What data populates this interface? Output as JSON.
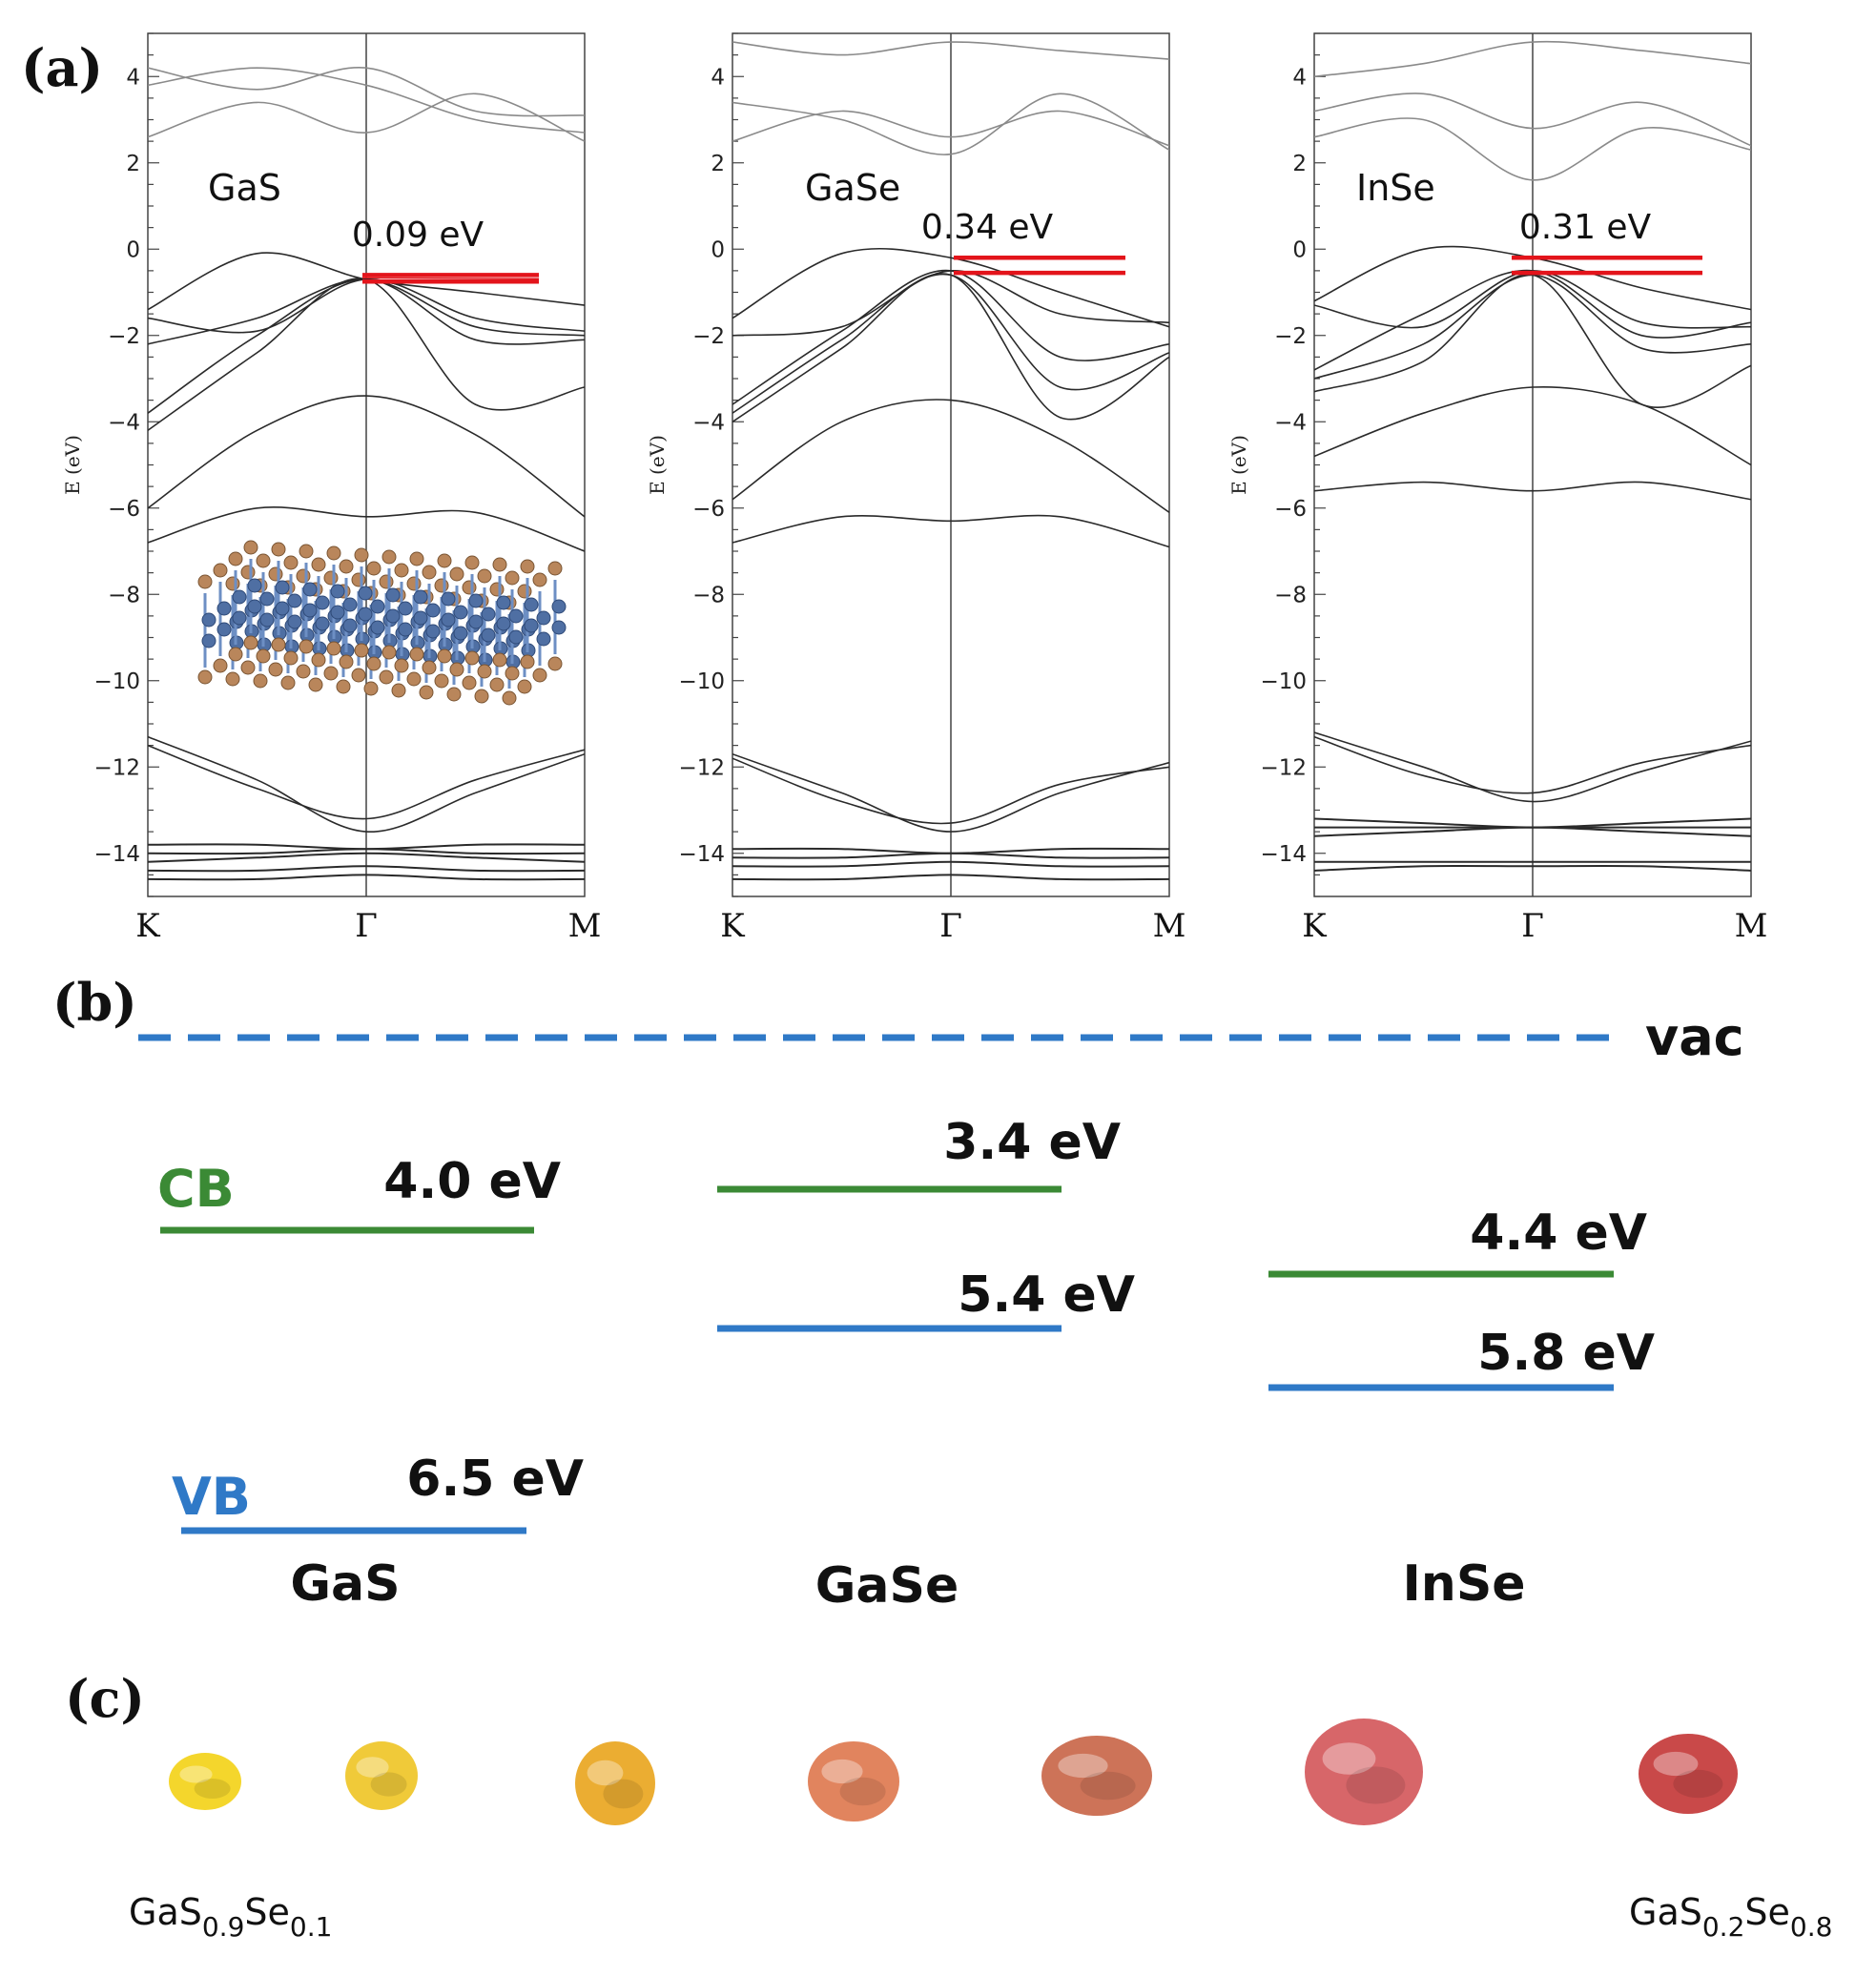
{
  "chart_data": [
    {
      "type": "line",
      "panel": "(a)",
      "title": "GaS",
      "ylabel": "E (eV)",
      "ylim": [
        -15,
        5
      ],
      "yticks": [
        4,
        2,
        0,
        -2,
        -4,
        -6,
        -8,
        -10,
        -12,
        -14
      ],
      "kpoints": [
        "K",
        "Γ",
        "M"
      ],
      "gap_annotation": "0.09 eV",
      "gap_levels": [
        -0.6,
        -0.75
      ],
      "has_structure_inset": true,
      "bands": [
        {
          "kind": "cb",
          "values": [
            4.2,
            3.7,
            4.2,
            3.2,
            3.1
          ]
        },
        {
          "kind": "cb",
          "values": [
            3.8,
            4.2,
            3.8,
            3.0,
            2.7
          ]
        },
        {
          "kind": "cb",
          "values": [
            2.6,
            3.4,
            2.7,
            3.6,
            2.5
          ]
        },
        {
          "kind": "vb",
          "values": [
            -1.4,
            -0.1,
            -0.7,
            -1.0,
            -1.3
          ]
        },
        {
          "kind": "vb",
          "values": [
            -1.6,
            -1.9,
            -0.7,
            -1.6,
            -1.9
          ]
        },
        {
          "kind": "vb",
          "values": [
            -2.2,
            -1.6,
            -0.7,
            -1.8,
            -2.0
          ]
        },
        {
          "kind": "vb",
          "values": [
            -3.8,
            -2.0,
            -0.7,
            -2.1,
            -2.1
          ]
        },
        {
          "kind": "vb",
          "values": [
            -4.2,
            -2.4,
            -0.7,
            -3.6,
            -3.2
          ]
        },
        {
          "kind": "vb",
          "values": [
            -6.0,
            -4.2,
            -3.4,
            -4.3,
            -6.2
          ]
        },
        {
          "kind": "vb",
          "values": [
            -6.8,
            -6.0,
            -6.2,
            -6.1,
            -7.0
          ]
        },
        {
          "kind": "vb",
          "values": [
            -11.3,
            -12.3,
            -13.5,
            -12.6,
            -11.7
          ]
        },
        {
          "kind": "vb",
          "values": [
            -11.5,
            -12.5,
            -13.2,
            -12.3,
            -11.6
          ]
        },
        {
          "kind": "flat",
          "values": [
            -13.8,
            -13.8,
            -13.9,
            -13.8,
            -13.8
          ]
        },
        {
          "kind": "flat",
          "values": [
            -14.0,
            -14.0,
            -13.9,
            -14.0,
            -14.0
          ]
        },
        {
          "kind": "flat",
          "values": [
            -14.2,
            -14.1,
            -14.0,
            -14.1,
            -14.2
          ]
        },
        {
          "kind": "flat",
          "values": [
            -14.4,
            -14.4,
            -14.3,
            -14.4,
            -14.4
          ]
        },
        {
          "kind": "flat",
          "values": [
            -14.6,
            -14.6,
            -14.5,
            -14.6,
            -14.6
          ]
        }
      ]
    },
    {
      "type": "line",
      "title": "GaSe",
      "ylabel": "E (eV)",
      "ylim": [
        -15,
        5
      ],
      "yticks": [
        4,
        2,
        0,
        -2,
        -4,
        -6,
        -8,
        -10,
        -12,
        -14
      ],
      "kpoints": [
        "K",
        "Γ",
        "M"
      ],
      "gap_annotation": "0.34 eV",
      "gap_levels": [
        -0.2,
        -0.55
      ],
      "has_structure_inset": false,
      "bands": [
        {
          "kind": "cb",
          "values": [
            4.8,
            4.5,
            4.8,
            4.6,
            4.4
          ]
        },
        {
          "kind": "cb",
          "values": [
            3.4,
            3.0,
            2.2,
            3.6,
            2.3
          ]
        },
        {
          "kind": "cb",
          "values": [
            2.5,
            3.2,
            2.6,
            3.2,
            2.4
          ]
        },
        {
          "kind": "vb",
          "values": [
            -1.6,
            -0.1,
            -0.2,
            -1.0,
            -1.8
          ]
        },
        {
          "kind": "vb",
          "values": [
            -2.0,
            -1.8,
            -0.5,
            -1.5,
            -1.7
          ]
        },
        {
          "kind": "vb",
          "values": [
            -3.6,
            -1.9,
            -0.5,
            -2.5,
            -2.2
          ]
        },
        {
          "kind": "vb",
          "values": [
            -3.8,
            -2.1,
            -0.6,
            -3.2,
            -2.4
          ]
        },
        {
          "kind": "vb",
          "values": [
            -4.0,
            -2.3,
            -0.6,
            -3.9,
            -2.5
          ]
        },
        {
          "kind": "vb",
          "values": [
            -5.8,
            -4.0,
            -3.5,
            -4.4,
            -6.1
          ]
        },
        {
          "kind": "vb",
          "values": [
            -6.8,
            -6.2,
            -6.3,
            -6.2,
            -6.9
          ]
        },
        {
          "kind": "vb",
          "values": [
            -11.7,
            -12.6,
            -13.5,
            -12.6,
            -11.9
          ]
        },
        {
          "kind": "vb",
          "values": [
            -11.8,
            -12.8,
            -13.3,
            -12.4,
            -12.0
          ]
        },
        {
          "kind": "flat",
          "values": [
            -13.9,
            -13.9,
            -14.0,
            -13.9,
            -13.9
          ]
        },
        {
          "kind": "flat",
          "values": [
            -14.1,
            -14.1,
            -14.0,
            -14.1,
            -14.1
          ]
        },
        {
          "kind": "flat",
          "values": [
            -14.3,
            -14.3,
            -14.2,
            -14.3,
            -14.3
          ]
        },
        {
          "kind": "flat",
          "values": [
            -14.6,
            -14.6,
            -14.5,
            -14.6,
            -14.6
          ]
        }
      ]
    },
    {
      "type": "line",
      "title": "InSe",
      "ylabel": "E (eV)",
      "ylim": [
        -15,
        5
      ],
      "yticks": [
        4,
        2,
        0,
        -2,
        -4,
        -6,
        -8,
        -10,
        -12,
        -14
      ],
      "kpoints": [
        "K",
        "Γ",
        "M"
      ],
      "gap_annotation": "0.31 eV",
      "gap_levels": [
        -0.2,
        -0.55
      ],
      "has_structure_inset": false,
      "bands": [
        {
          "kind": "cb",
          "values": [
            4.0,
            4.3,
            4.8,
            4.6,
            4.3
          ]
        },
        {
          "kind": "cb",
          "values": [
            3.2,
            3.6,
            2.8,
            3.4,
            2.4
          ]
        },
        {
          "kind": "cb",
          "values": [
            2.6,
            3.0,
            1.6,
            2.8,
            2.3
          ]
        },
        {
          "kind": "vb",
          "values": [
            -1.2,
            0.0,
            -0.2,
            -0.9,
            -1.4
          ]
        },
        {
          "kind": "vb",
          "values": [
            -1.3,
            -1.8,
            -0.5,
            -1.7,
            -1.8
          ]
        },
        {
          "kind": "vb",
          "values": [
            -2.8,
            -1.5,
            -0.5,
            -2.0,
            -1.7
          ]
        },
        {
          "kind": "vb",
          "values": [
            -3.0,
            -2.2,
            -0.6,
            -2.3,
            -2.2
          ]
        },
        {
          "kind": "vb",
          "values": [
            -3.3,
            -2.6,
            -0.6,
            -3.6,
            -2.7
          ]
        },
        {
          "kind": "vb",
          "values": [
            -4.8,
            -3.8,
            -3.2,
            -3.6,
            -5.0
          ]
        },
        {
          "kind": "vb",
          "values": [
            -5.6,
            -5.4,
            -5.6,
            -5.4,
            -5.8
          ]
        },
        {
          "kind": "vb",
          "values": [
            -11.2,
            -12.0,
            -12.8,
            -12.1,
            -11.4
          ]
        },
        {
          "kind": "vb",
          "values": [
            -11.3,
            -12.2,
            -12.6,
            -11.9,
            -11.5
          ]
        },
        {
          "kind": "flat",
          "values": [
            -13.2,
            -13.3,
            -13.4,
            -13.3,
            -13.2
          ]
        },
        {
          "kind": "flat",
          "values": [
            -13.4,
            -13.4,
            -13.4,
            -13.4,
            -13.4
          ]
        },
        {
          "kind": "flat",
          "values": [
            -13.6,
            -13.5,
            -13.4,
            -13.5,
            -13.6
          ]
        },
        {
          "kind": "flat",
          "values": [
            -14.2,
            -14.2,
            -14.2,
            -14.2,
            -14.2
          ]
        },
        {
          "kind": "flat",
          "values": [
            -14.4,
            -14.3,
            -14.3,
            -14.3,
            -14.4
          ]
        }
      ]
    },
    {
      "type": "band-alignment",
      "panel": "(b)",
      "vacuum_label": "vac",
      "cb_label": "CB",
      "vb_label": "VB",
      "unit": "eV",
      "materials": [
        {
          "name": "GaS",
          "cb": 4.0,
          "vb": 6.5,
          "cb_text": "4.0 eV",
          "vb_text": "6.5 eV"
        },
        {
          "name": "GaSe",
          "cb": 3.4,
          "vb": 5.4,
          "cb_text": "3.4 eV",
          "vb_text": "5.4 eV"
        },
        {
          "name": "InSe",
          "cb": 4.4,
          "vb": 5.8,
          "cb_text": "4.4 eV",
          "vb_text": "5.8 eV"
        }
      ]
    }
  ],
  "panel_c": {
    "label": "(c)",
    "caption_left": {
      "base": "GaS",
      "sub1": "0.9",
      "mid": "Se",
      "sub2": "0.1"
    },
    "caption_right": {
      "base": "GaS",
      "sub1": "0.2",
      "mid": "Se",
      "sub2": "0.8"
    },
    "samples": [
      {
        "color": "#f3d21a"
      },
      {
        "color": "#efc528"
      },
      {
        "color": "#e9a621"
      },
      {
        "color": "#de7a50"
      },
      {
        "color": "#c9674a"
      },
      {
        "color": "#d4595c"
      },
      {
        "color": "#c43a3a"
      }
    ]
  },
  "colors": {
    "band": "#2a2a2a",
    "cb_band": "#8a8a8a",
    "gap_marker": "#e3141b",
    "vac": "#2f79c7",
    "cb": "#3b8a35",
    "vb": "#2f79c7"
  }
}
